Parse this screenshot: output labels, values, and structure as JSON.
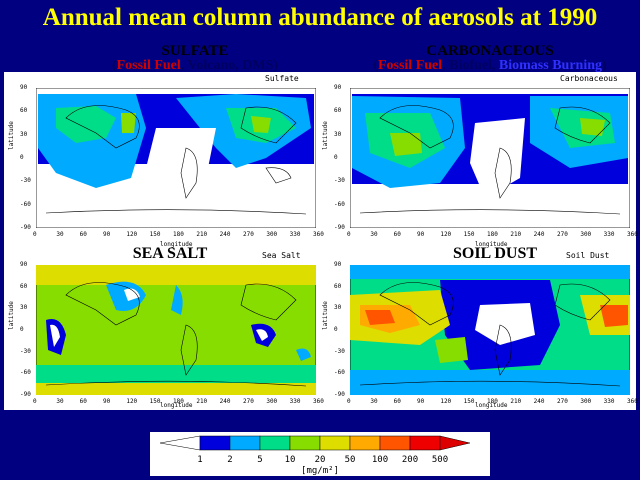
{
  "title": "Annual mean column abundance of aerosols at 1990",
  "panels": {
    "sulfate": {
      "heading": "SULFATE",
      "map_label": "Sulfate",
      "sub": {
        "open": "(",
        "a": "Fossil Fuel",
        "sep1": ", ",
        "b": "Volcano",
        "sep2": ", ",
        "c": "DMS",
        "close": ")"
      }
    },
    "carbon": {
      "heading": "CARBONACEOUS",
      "map_label": "Carbonaceous",
      "sub": {
        "open": "(",
        "a": "Fossil Fuel",
        "sep1": ", ",
        "b": "Biofuel",
        "sep2": ", ",
        "c": "Biomass Burning",
        "close": ")"
      }
    },
    "seasalt": {
      "heading": "SEA SALT",
      "map_label": "Sea Salt"
    },
    "dust": {
      "heading": "SOIL DUST",
      "map_label": "Soil Dust"
    }
  },
  "axis": {
    "latitude_label": "latitude",
    "longitude_label": "longitude",
    "lat_ticks": [
      "90",
      "60",
      "30",
      "0",
      "-30",
      "-60",
      "-90"
    ],
    "lon_ticks": [
      "0",
      "30",
      "60",
      "90",
      "120",
      "150",
      "180",
      "210",
      "240",
      "270",
      "300",
      "330",
      "360"
    ]
  },
  "legend": {
    "levels": [
      "1",
      "2",
      "5",
      "10",
      "20",
      "50",
      "100",
      "200",
      "500"
    ],
    "units": "[mg/m²]",
    "colors": [
      "#ffffff",
      "#0000dd",
      "#00aaff",
      "#00dd88",
      "#88dd00",
      "#dddd00",
      "#ffaa00",
      "#ff5500",
      "#ee0000",
      "#dd0000"
    ]
  }
}
